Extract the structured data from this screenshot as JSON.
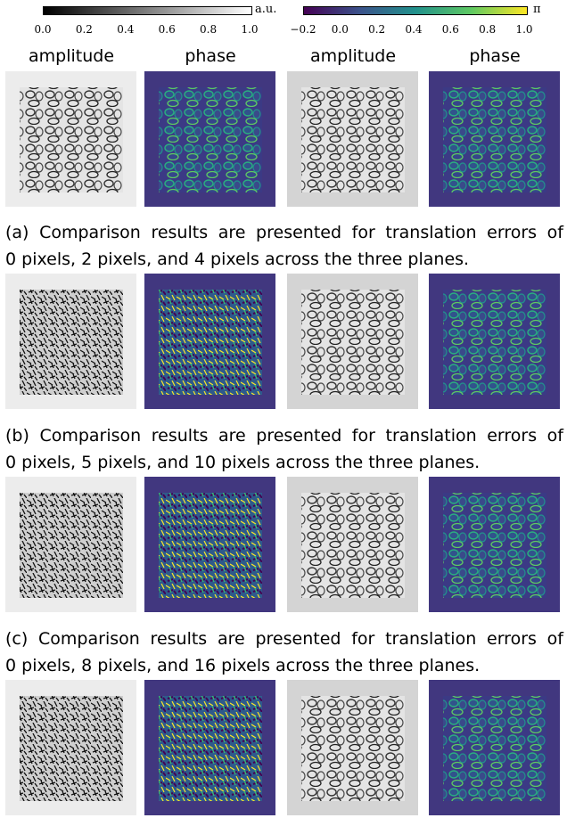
{
  "colorbars": [
    {
      "ticks": [
        "0.0",
        "0.2",
        "0.4",
        "0.6",
        "0.8",
        "1.0"
      ],
      "unit": "a.u."
    },
    {
      "ticks": [
        "−0.2",
        "0.0",
        "0.2",
        "0.4",
        "0.6",
        "0.8",
        "1.0"
      ],
      "unit": "π"
    }
  ],
  "column_headers": [
    "amplitude",
    "phase",
    "amplitude",
    "phase"
  ],
  "captions": [
    {
      "lines": [
        "(a) Comparison results are presented for translation errors of",
        "0 pixels, 2 pixels, and 4 pixels across the three planes."
      ]
    },
    {
      "lines": [
        "(b) Comparison results are presented for translation errors of",
        "0 pixels, 5 pixels, and 10 pixels across the three planes."
      ]
    },
    {
      "lines": [
        "(c) Comparison results are presented for translation errors of",
        "0 pixels, 8 pixels, and 16 pixels across the three planes."
      ]
    }
  ]
}
